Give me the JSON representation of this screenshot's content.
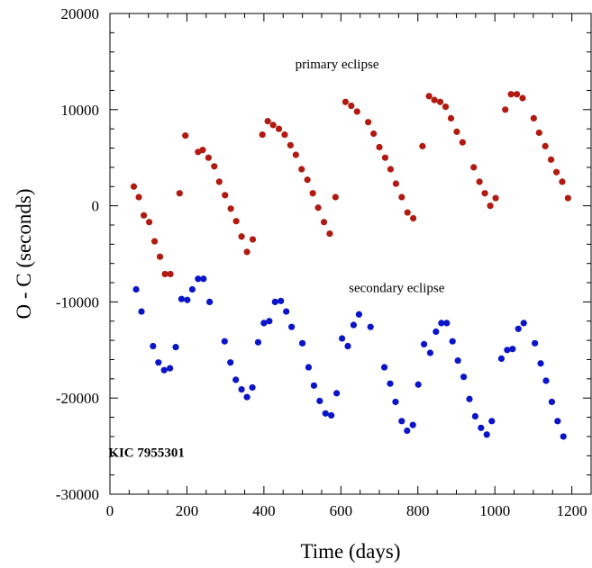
{
  "chart_data": {
    "type": "scatter",
    "xlabel": "Time (days)",
    "ylabel": "O - C (seconds)",
    "xlim": [
      0,
      1250
    ],
    "ylim": [
      -30000,
      20000
    ],
    "x_ticks": [
      0,
      200,
      400,
      600,
      800,
      1000,
      1200
    ],
    "y_ticks": [
      -30000,
      -20000,
      -10000,
      0,
      10000,
      20000
    ],
    "grid": false,
    "annotations": [
      {
        "text": "primary eclipse",
        "x": 590,
        "y": 14300,
        "style": "normal"
      },
      {
        "text": "secondary eclipse",
        "x": 745,
        "y": -9000,
        "style": "normal"
      },
      {
        "text": "KIC 7955301",
        "x": 95,
        "y": -26100,
        "style": "bold"
      }
    ],
    "series": [
      {
        "name": "primary eclipse",
        "color": "#b01a10",
        "points": [
          [
            62,
            2000
          ],
          [
            75,
            900
          ],
          [
            88,
            -1000
          ],
          [
            102,
            -1700
          ],
          [
            116,
            -3700
          ],
          [
            130,
            -5300
          ],
          [
            143,
            -7100
          ],
          [
            157,
            -7100
          ],
          [
            181,
            1300
          ],
          [
            196,
            7300
          ],
          [
            229,
            5600
          ],
          [
            241,
            5800
          ],
          [
            256,
            5000
          ],
          [
            271,
            4100
          ],
          [
            284,
            2500
          ],
          [
            299,
            1100
          ],
          [
            314,
            -300
          ],
          [
            328,
            -1600
          ],
          [
            342,
            -3200
          ],
          [
            356,
            -4800
          ],
          [
            371,
            -3500
          ],
          [
            396,
            7400
          ],
          [
            410,
            8800
          ],
          [
            424,
            8400
          ],
          [
            439,
            8000
          ],
          [
            454,
            7400
          ],
          [
            469,
            6300
          ],
          [
            483,
            5300
          ],
          [
            498,
            3800
          ],
          [
            513,
            2700
          ],
          [
            527,
            1300
          ],
          [
            541,
            -200
          ],
          [
            556,
            -1700
          ],
          [
            571,
            -2900
          ],
          [
            586,
            900
          ],
          [
            612,
            10800
          ],
          [
            627,
            10400
          ],
          [
            642,
            9800
          ],
          [
            671,
            8700
          ],
          [
            685,
            7500
          ],
          [
            700,
            6100
          ],
          [
            715,
            5000
          ],
          [
            729,
            3800
          ],
          [
            743,
            2300
          ],
          [
            758,
            900
          ],
          [
            773,
            -700
          ],
          [
            788,
            -1300
          ],
          [
            812,
            6200
          ],
          [
            829,
            11400
          ],
          [
            843,
            11000
          ],
          [
            858,
            10800
          ],
          [
            872,
            10300
          ],
          [
            886,
            9100
          ],
          [
            901,
            7700
          ],
          [
            916,
            6600
          ],
          [
            945,
            4000
          ],
          [
            960,
            2500
          ],
          [
            974,
            1300
          ],
          [
            988,
            0
          ],
          [
            1002,
            800
          ],
          [
            1027,
            10000
          ],
          [
            1042,
            11600
          ],
          [
            1057,
            11600
          ],
          [
            1072,
            11200
          ],
          [
            1101,
            9100
          ],
          [
            1115,
            7600
          ],
          [
            1131,
            6200
          ],
          [
            1146,
            4800
          ],
          [
            1160,
            3500
          ],
          [
            1175,
            2500
          ],
          [
            1190,
            800
          ]
        ]
      },
      {
        "name": "secondary eclipse",
        "color": "#0a14c8",
        "points": [
          [
            68,
            -8700
          ],
          [
            82,
            -11000
          ],
          [
            112,
            -14600
          ],
          [
            126,
            -16300
          ],
          [
            141,
            -17100
          ],
          [
            156,
            -16900
          ],
          [
            171,
            -14700
          ],
          [
            186,
            -9700
          ],
          [
            201,
            -9800
          ],
          [
            214,
            -8700
          ],
          [
            229,
            -7600
          ],
          [
            243,
            -7600
          ],
          [
            259,
            -10000
          ],
          [
            298,
            -14100
          ],
          [
            313,
            -16300
          ],
          [
            327,
            -18100
          ],
          [
            342,
            -19100
          ],
          [
            356,
            -19900
          ],
          [
            370,
            -18900
          ],
          [
            385,
            -14200
          ],
          [
            400,
            -12200
          ],
          [
            414,
            -12000
          ],
          [
            429,
            -10000
          ],
          [
            444,
            -9900
          ],
          [
            458,
            -11000
          ],
          [
            472,
            -12600
          ],
          [
            500,
            -14300
          ],
          [
            516,
            -16800
          ],
          [
            530,
            -18700
          ],
          [
            545,
            -20300
          ],
          [
            560,
            -21600
          ],
          [
            575,
            -21800
          ],
          [
            589,
            -19500
          ],
          [
            603,
            -13800
          ],
          [
            618,
            -14600
          ],
          [
            633,
            -12400
          ],
          [
            647,
            -11300
          ],
          [
            677,
            -12600
          ],
          [
            713,
            -16800
          ],
          [
            728,
            -18500
          ],
          [
            742,
            -20400
          ],
          [
            758,
            -22400
          ],
          [
            772,
            -23400
          ],
          [
            787,
            -22800
          ],
          [
            801,
            -18600
          ],
          [
            816,
            -14400
          ],
          [
            832,
            -15300
          ],
          [
            847,
            -13100
          ],
          [
            861,
            -12200
          ],
          [
            875,
            -12200
          ],
          [
            890,
            -14100
          ],
          [
            904,
            -16100
          ],
          [
            919,
            -17800
          ],
          [
            934,
            -20100
          ],
          [
            949,
            -21900
          ],
          [
            964,
            -23100
          ],
          [
            979,
            -23800
          ],
          [
            992,
            -22400
          ],
          [
            1017,
            -15900
          ],
          [
            1032,
            -15000
          ],
          [
            1046,
            -14900
          ],
          [
            1061,
            -12800
          ],
          [
            1075,
            -12200
          ],
          [
            1104,
            -14300
          ],
          [
            1119,
            -16400
          ],
          [
            1133,
            -18200
          ],
          [
            1148,
            -20400
          ],
          [
            1163,
            -22400
          ],
          [
            1178,
            -24000
          ]
        ]
      }
    ]
  }
}
